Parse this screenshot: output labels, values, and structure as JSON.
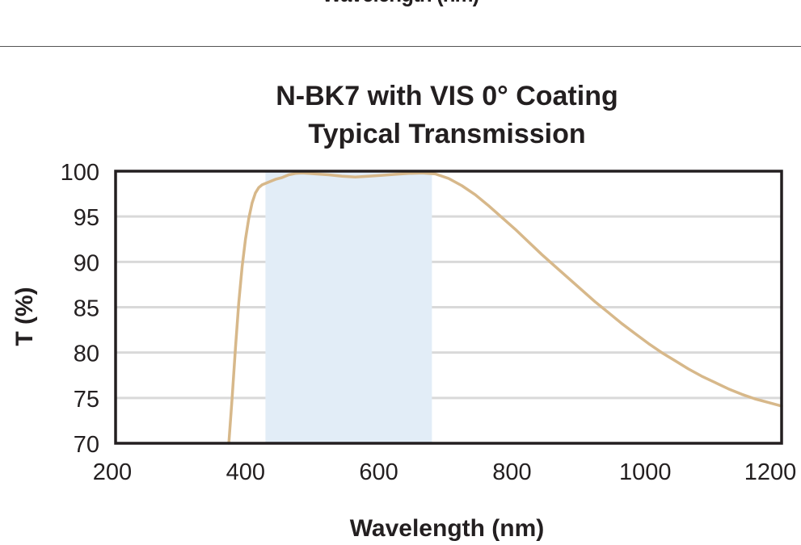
{
  "header": {
    "cut_off_label": "Wavelength (nm)"
  },
  "chart_data": {
    "type": "line",
    "title": [
      "N-BK7 with VIS 0° Coating",
      "Typical Transmission"
    ],
    "xlabel": "Wavelength (nm)",
    "ylabel": "T (%)",
    "xlim": [
      200,
      1200
    ],
    "ylim": [
      70,
      100
    ],
    "xticks": [
      200,
      400,
      600,
      800,
      1000,
      1200
    ],
    "yticks": [
      70,
      75,
      80,
      85,
      90,
      95,
      100
    ],
    "grid": "horizontal",
    "legend": "none",
    "highlight_band": {
      "x_range": [
        425,
        675
      ],
      "color": "#e2edf7"
    },
    "series": [
      {
        "color": "#d7b88a",
        "x": [
          370,
          375,
          380,
          385,
          390,
          395,
          400,
          405,
          410,
          415,
          420,
          430,
          440,
          450,
          460,
          470,
          480,
          490,
          500,
          520,
          540,
          560,
          580,
          600,
          620,
          640,
          660,
          680,
          700,
          720,
          740,
          760,
          780,
          800,
          820,
          840,
          860,
          880,
          900,
          920,
          940,
          960,
          980,
          1000,
          1020,
          1040,
          1060,
          1080,
          1100,
          1120,
          1140,
          1160,
          1180,
          1200
        ],
        "y": [
          70.0,
          75.0,
          80.5,
          85.5,
          89.5,
          92.5,
          94.8,
          96.5,
          97.6,
          98.2,
          98.5,
          98.8,
          99.1,
          99.3,
          99.6,
          99.75,
          99.8,
          99.75,
          99.7,
          99.6,
          99.45,
          99.35,
          99.45,
          99.55,
          99.65,
          99.75,
          99.8,
          99.7,
          99.2,
          98.4,
          97.4,
          96.2,
          94.9,
          93.6,
          92.2,
          90.8,
          89.5,
          88.2,
          86.9,
          85.6,
          84.4,
          83.2,
          82.1,
          81.0,
          80.0,
          79.1,
          78.2,
          77.4,
          76.7,
          76.0,
          75.4,
          74.9,
          74.5,
          74.1
        ]
      }
    ]
  }
}
